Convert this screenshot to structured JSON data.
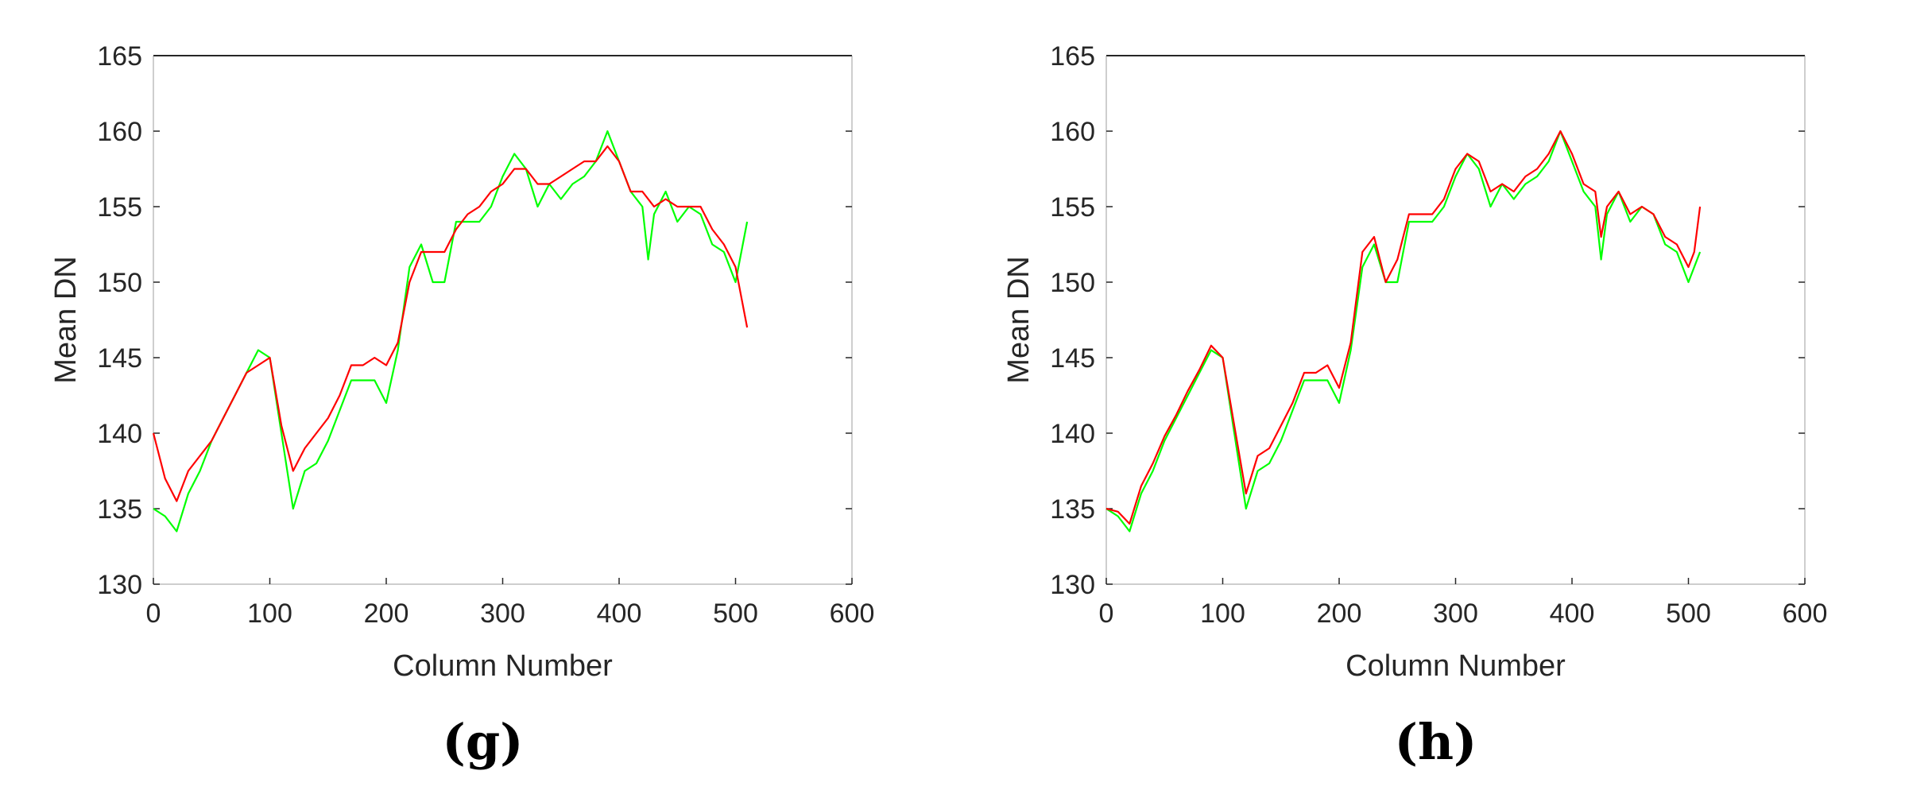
{
  "chart_data": [
    {
      "type": "line",
      "panel_label": "(g)",
      "xlabel": "Column Number",
      "ylabel": "Mean DN",
      "xlim": [
        0,
        600
      ],
      "ylim": [
        130,
        165
      ],
      "xticks": [
        0,
        100,
        200,
        300,
        400,
        500,
        600
      ],
      "yticks": [
        130,
        135,
        140,
        145,
        150,
        155,
        160,
        165
      ],
      "grid": false,
      "legend": "none",
      "series": [
        {
          "color": "#00ff00",
          "x": [
            0,
            10,
            20,
            30,
            40,
            50,
            60,
            70,
            80,
            90,
            100,
            110,
            120,
            130,
            140,
            150,
            160,
            170,
            180,
            190,
            200,
            210,
            220,
            230,
            240,
            250,
            260,
            270,
            280,
            290,
            300,
            310,
            320,
            330,
            340,
            350,
            360,
            370,
            380,
            390,
            400,
            410,
            420,
            425,
            430,
            440,
            450,
            460,
            470,
            480,
            490,
            500,
            510
          ],
          "values": [
            135.0,
            134.5,
            133.5,
            136.0,
            137.5,
            139.5,
            141.0,
            142.5,
            144.0,
            145.5,
            145.0,
            140.0,
            135.0,
            137.5,
            138.0,
            139.5,
            141.5,
            143.5,
            143.5,
            143.5,
            142.0,
            145.5,
            151.0,
            152.5,
            150.0,
            150.0,
            154.0,
            154.0,
            154.0,
            155.0,
            157.0,
            158.5,
            157.5,
            155.0,
            156.5,
            155.5,
            156.5,
            157.0,
            158.0,
            160.0,
            158.0,
            156.0,
            155.0,
            151.5,
            154.5,
            156.0,
            154.0,
            155.0,
            154.5,
            152.5,
            152.0,
            150.0,
            154.0
          ]
        },
        {
          "color": "#ff0000",
          "x": [
            0,
            10,
            20,
            30,
            40,
            50,
            60,
            70,
            80,
            90,
            100,
            110,
            120,
            130,
            140,
            150,
            160,
            170,
            180,
            190,
            200,
            210,
            220,
            230,
            240,
            250,
            260,
            270,
            280,
            290,
            300,
            310,
            320,
            330,
            340,
            350,
            360,
            370,
            380,
            390,
            400,
            410,
            420,
            430,
            440,
            450,
            460,
            470,
            480,
            490,
            500,
            510
          ],
          "values": [
            140.0,
            137.0,
            135.5,
            137.5,
            138.5,
            139.5,
            141.0,
            142.5,
            144.0,
            144.5,
            145.0,
            140.5,
            137.5,
            139.0,
            140.0,
            141.0,
            142.5,
            144.5,
            144.5,
            145.0,
            144.5,
            146.0,
            150.0,
            152.0,
            152.0,
            152.0,
            153.5,
            154.5,
            155.0,
            156.0,
            156.5,
            157.5,
            157.5,
            156.5,
            156.5,
            157.0,
            157.5,
            158.0,
            158.0,
            159.0,
            158.0,
            156.0,
            156.0,
            155.0,
            155.5,
            155.0,
            155.0,
            155.0,
            153.5,
            152.5,
            151.0,
            147.0
          ]
        }
      ]
    },
    {
      "type": "line",
      "panel_label": "(h)",
      "xlabel": "Column Number",
      "ylabel": "Mean DN",
      "xlim": [
        0,
        600
      ],
      "ylim": [
        130,
        165
      ],
      "xticks": [
        0,
        100,
        200,
        300,
        400,
        500,
        600
      ],
      "yticks": [
        130,
        135,
        140,
        145,
        150,
        155,
        160,
        165
      ],
      "grid": false,
      "legend": "none",
      "series": [
        {
          "color": "#00ff00",
          "x": [
            0,
            10,
            20,
            30,
            40,
            50,
            60,
            70,
            80,
            90,
            100,
            110,
            120,
            130,
            140,
            150,
            160,
            170,
            180,
            190,
            200,
            210,
            220,
            230,
            240,
            250,
            260,
            270,
            280,
            290,
            300,
            310,
            320,
            330,
            340,
            350,
            360,
            370,
            380,
            390,
            400,
            410,
            420,
            425,
            430,
            440,
            450,
            460,
            470,
            480,
            490,
            500,
            510
          ],
          "values": [
            135.0,
            134.5,
            133.5,
            136.0,
            137.5,
            139.5,
            141.0,
            142.5,
            144.0,
            145.5,
            145.0,
            140.0,
            135.0,
            137.5,
            138.0,
            139.5,
            141.5,
            143.5,
            143.5,
            143.5,
            142.0,
            145.5,
            151.0,
            152.5,
            150.0,
            150.0,
            154.0,
            154.0,
            154.0,
            155.0,
            157.0,
            158.5,
            157.5,
            155.0,
            156.5,
            155.5,
            156.5,
            157.0,
            158.0,
            160.0,
            158.0,
            156.0,
            155.0,
            151.5,
            154.5,
            156.0,
            154.0,
            155.0,
            154.5,
            152.5,
            152.0,
            150.0,
            152.0
          ]
        },
        {
          "color": "#ff0000",
          "x": [
            0,
            10,
            20,
            30,
            40,
            50,
            60,
            70,
            80,
            90,
            100,
            110,
            120,
            130,
            140,
            150,
            160,
            170,
            180,
            190,
            200,
            210,
            220,
            230,
            240,
            250,
            260,
            270,
            280,
            290,
            300,
            310,
            320,
            330,
            340,
            350,
            360,
            370,
            380,
            390,
            400,
            410,
            420,
            425,
            430,
            440,
            450,
            460,
            470,
            480,
            490,
            500,
            505,
            510
          ],
          "values": [
            135.0,
            134.8,
            134.0,
            136.5,
            138.0,
            139.8,
            141.2,
            142.8,
            144.2,
            145.8,
            145.0,
            140.5,
            136.0,
            138.5,
            139.0,
            140.5,
            142.0,
            144.0,
            144.0,
            144.5,
            143.0,
            146.0,
            152.0,
            153.0,
            150.0,
            151.5,
            154.5,
            154.5,
            154.5,
            155.5,
            157.5,
            158.5,
            158.0,
            156.0,
            156.5,
            156.0,
            157.0,
            157.5,
            158.5,
            160.0,
            158.5,
            156.5,
            156.0,
            153.0,
            155.0,
            156.0,
            154.5,
            155.0,
            154.5,
            153.0,
            152.5,
            151.0,
            152.0,
            155.0
          ]
        }
      ]
    }
  ]
}
